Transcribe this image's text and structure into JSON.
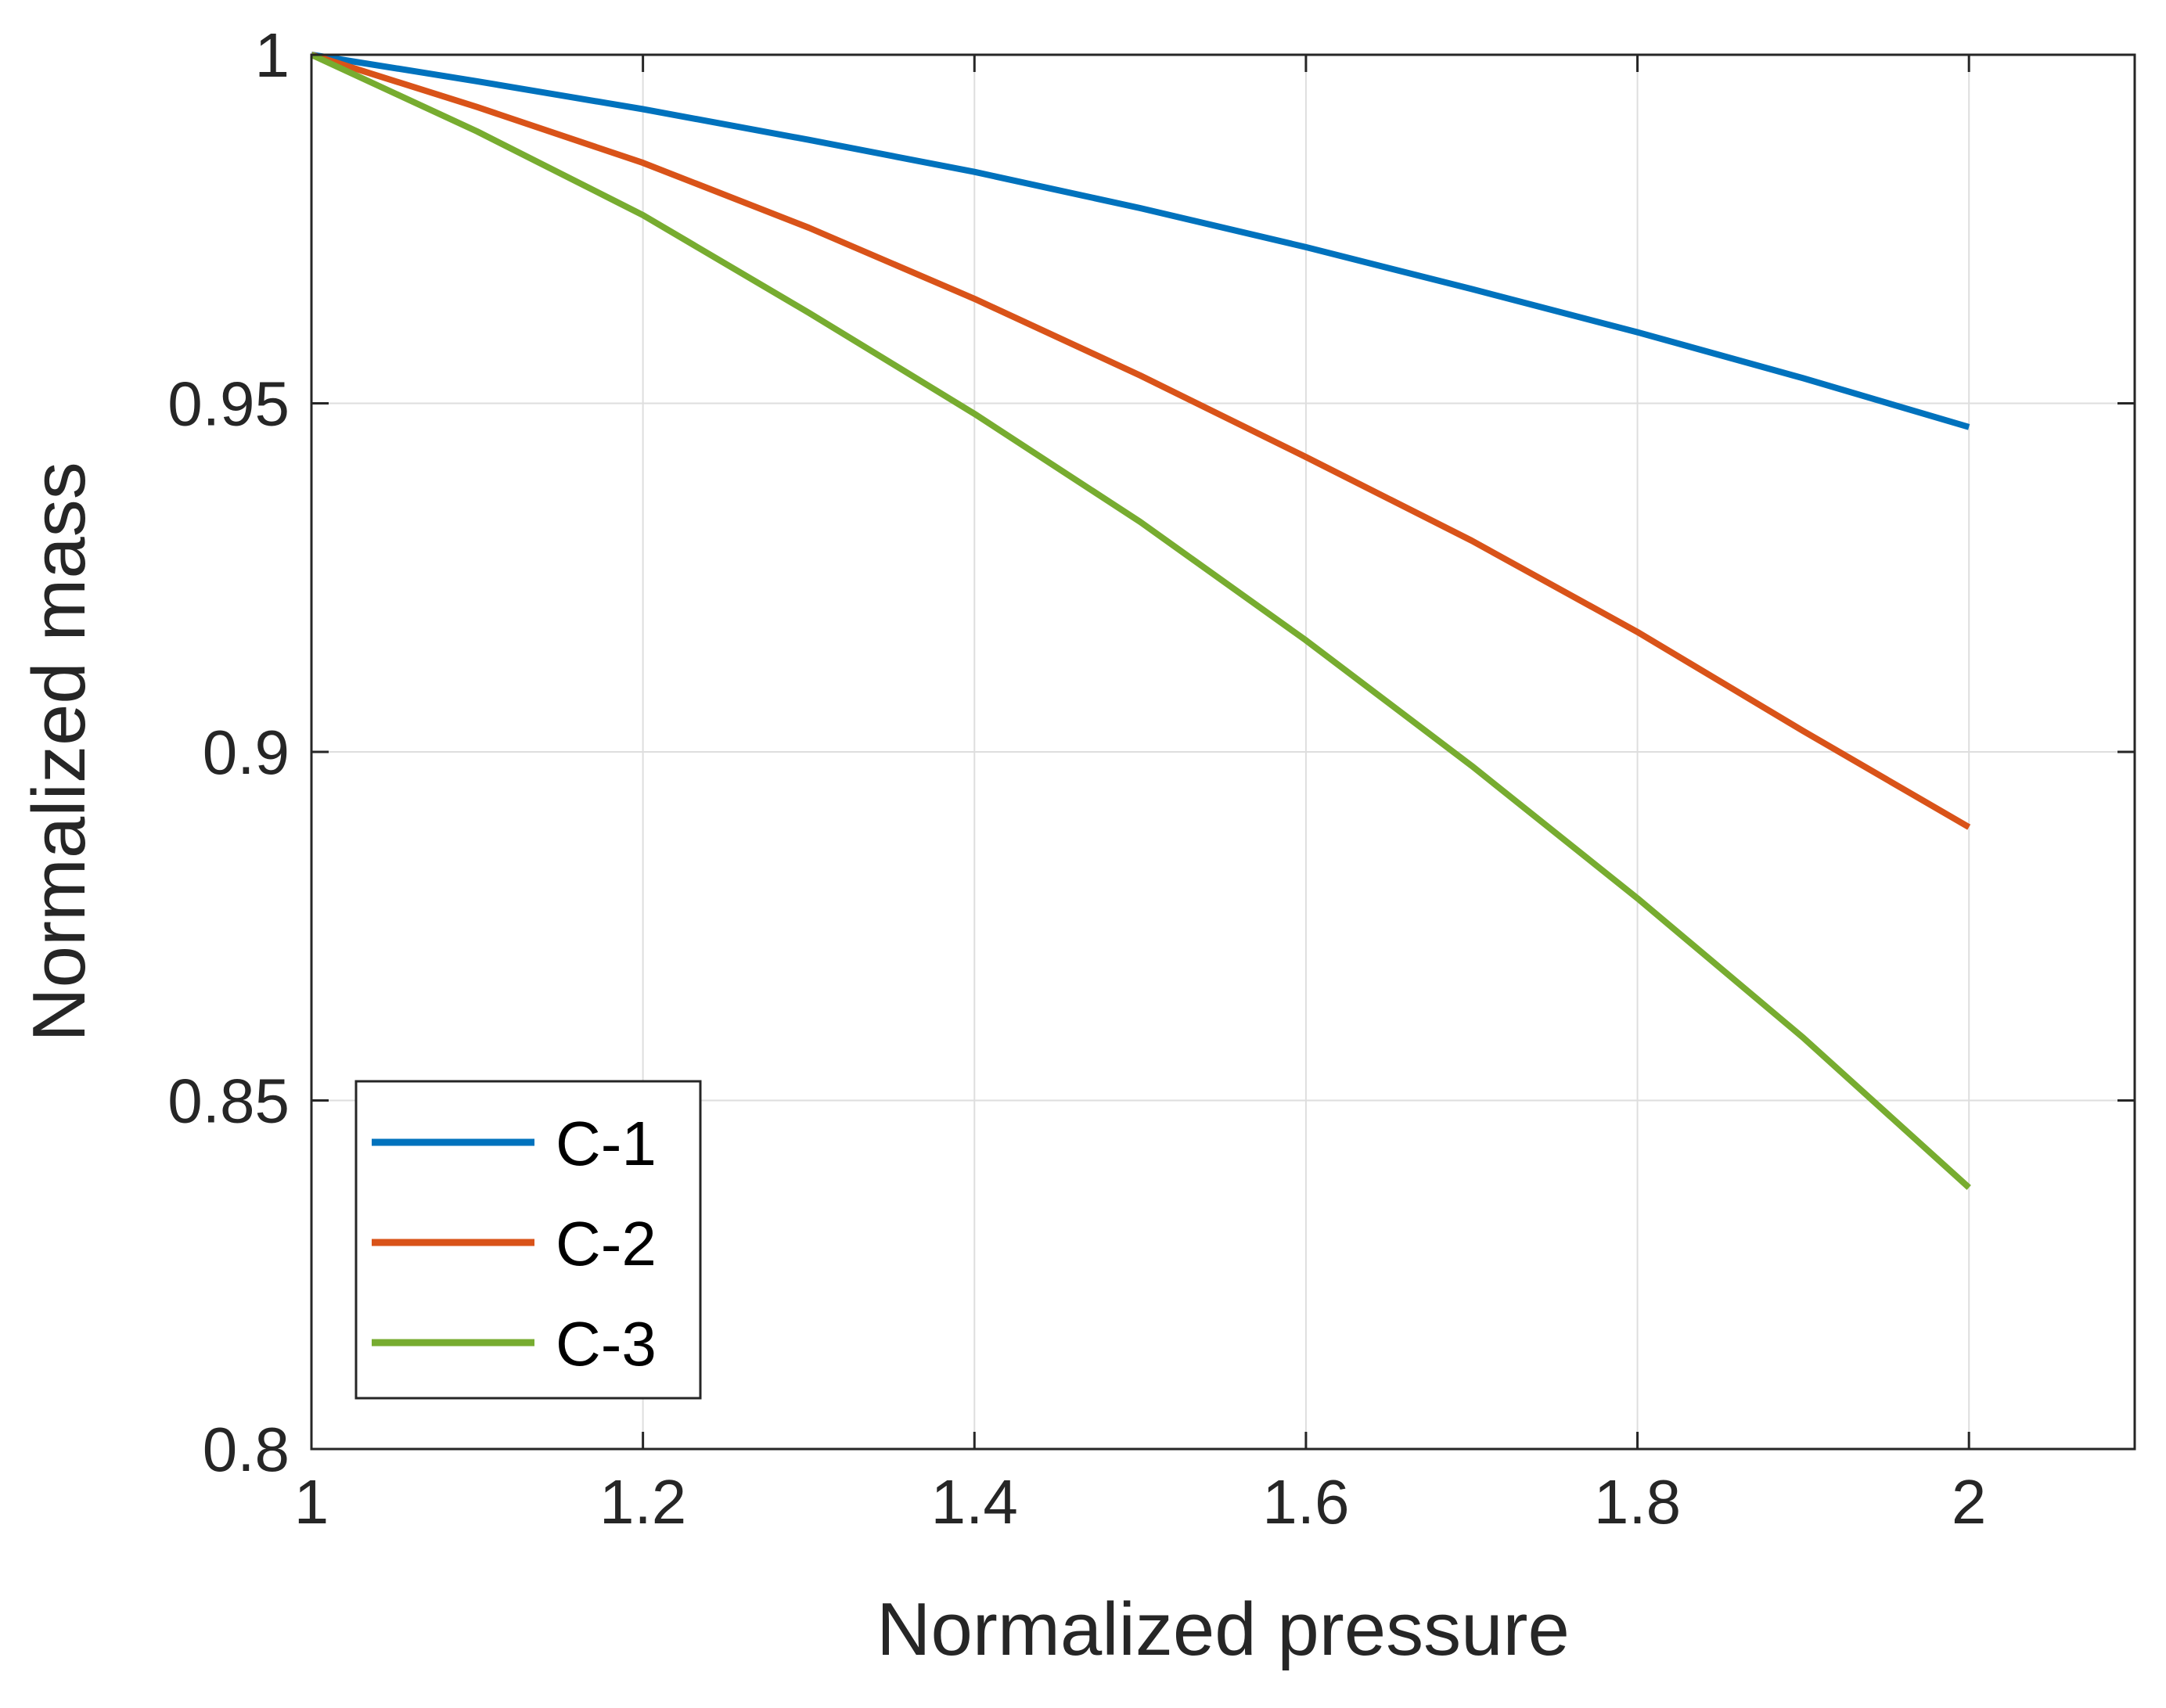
{
  "chart_data": {
    "type": "line",
    "title": "",
    "xlabel": "Normalized pressure",
    "ylabel": "Normalized mass",
    "xlim": [
      1,
      2.1
    ],
    "ylim": [
      0.8,
      1
    ],
    "xticks": [
      1,
      1.2,
      1.4,
      1.6,
      1.8,
      2
    ],
    "xtick_labels": [
      "1",
      "1.2",
      "1.4",
      "1.6",
      "1.8",
      "2"
    ],
    "yticks": [
      0.8,
      0.85,
      0.9,
      0.95,
      1
    ],
    "ytick_labels": [
      "0.8",
      "0.85",
      "0.9",
      "0.95",
      "1"
    ],
    "grid": true,
    "legend_position": "bottom-left",
    "series": [
      {
        "name": "C-1",
        "color": "#0072BD",
        "x": [
          1.0,
          1.1,
          1.2,
          1.3,
          1.4,
          1.5,
          1.6,
          1.7,
          1.8,
          1.9,
          2.0
        ],
        "y": [
          1.0,
          0.9962,
          0.9922,
          0.9878,
          0.9832,
          0.978,
          0.9724,
          0.9664,
          0.9602,
          0.9536,
          0.9466
        ]
      },
      {
        "name": "C-2",
        "color": "#D95319",
        "x": [
          1.0,
          1.1,
          1.2,
          1.3,
          1.4,
          1.5,
          1.6,
          1.7,
          1.8,
          1.9,
          2.0
        ],
        "y": [
          1.0,
          0.9925,
          0.9845,
          0.9752,
          0.965,
          0.954,
          0.9423,
          0.9303,
          0.9172,
          0.903,
          0.8892
        ]
      },
      {
        "name": "C-3",
        "color": "#77AC30",
        "x": [
          1.0,
          1.1,
          1.2,
          1.3,
          1.4,
          1.5,
          1.6,
          1.7,
          1.8,
          1.9,
          2.0
        ],
        "y": [
          1.0,
          0.989,
          0.977,
          0.963,
          0.9485,
          0.933,
          0.916,
          0.898,
          0.879,
          0.859,
          0.8375
        ]
      }
    ]
  }
}
